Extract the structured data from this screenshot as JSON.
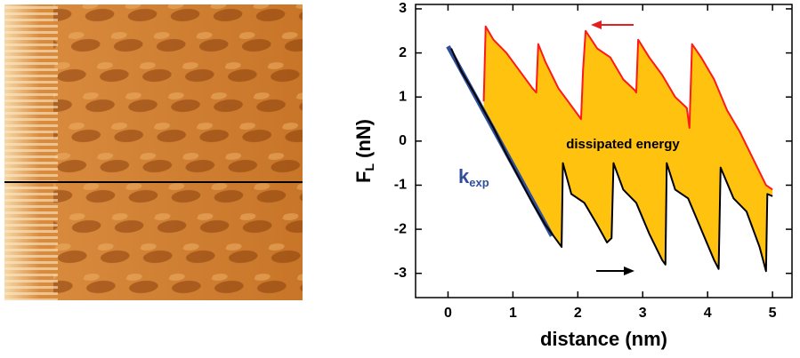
{
  "chart_data": {
    "type": "line",
    "x_label": "distance (nm)",
    "y_label": {
      "main": "F",
      "sub": "L",
      "unit": "(nN)"
    },
    "annotation": "dissipated energy",
    "fill_color": "#ffc20e",
    "xlim": [
      -0.5,
      5.3
    ],
    "xticks": [
      0,
      1,
      2,
      3,
      4,
      5
    ],
    "ylim": [
      -3.55,
      3.1
    ],
    "yticks": [
      -3,
      -2,
      -1,
      0,
      1,
      2,
      3
    ],
    "fit": {
      "label": "k",
      "label_sub": "exp",
      "color": "#2f4f9a",
      "x": [
        0,
        1.6
      ],
      "values": [
        2.15,
        -2.15
      ]
    },
    "series": [
      {
        "color": "#000000",
        "x": [
          0.05,
          0.2,
          0.4,
          0.55,
          0.7,
          0.9,
          1.1,
          1.3,
          1.5,
          1.7,
          1.75,
          1.77,
          1.9,
          2.1,
          2.3,
          2.45,
          2.52,
          2.55,
          2.7,
          2.9,
          3.1,
          3.3,
          3.35,
          3.37,
          3.5,
          3.7,
          3.9,
          4.1,
          4.17,
          4.2,
          4.4,
          4.6,
          4.8,
          4.9,
          4.92,
          5.0
        ],
        "values": [
          2.1,
          1.6,
          1.1,
          0.7,
          0.3,
          -0.3,
          -0.85,
          -1.4,
          -1.9,
          -2.3,
          -2.4,
          -0.5,
          -1.2,
          -1.4,
          -1.9,
          -2.3,
          -2.2,
          -0.5,
          -1.1,
          -1.4,
          -2.1,
          -2.7,
          -2.8,
          -0.5,
          -1.1,
          -1.3,
          -2.0,
          -2.7,
          -2.9,
          -0.6,
          -1.3,
          -1.6,
          -2.4,
          -2.95,
          -1.2,
          -1.25
        ]
      },
      {
        "color": "#ff1a1a",
        "x": [
          0.55,
          0.58,
          0.7,
          0.9,
          1.1,
          1.3,
          1.36,
          1.39,
          1.5,
          1.7,
          1.9,
          2.05,
          2.08,
          2.12,
          2.3,
          2.5,
          2.7,
          2.88,
          2.9,
          2.93,
          3.1,
          3.3,
          3.5,
          3.68,
          3.72,
          3.76,
          3.9,
          4.1,
          4.3,
          4.5,
          4.7,
          4.9,
          5.0
        ],
        "values": [
          0.9,
          2.6,
          2.3,
          2.0,
          1.6,
          1.2,
          1.1,
          2.2,
          1.8,
          1.2,
          0.8,
          0.5,
          1.6,
          2.5,
          2.1,
          1.9,
          1.4,
          1.15,
          1.1,
          2.3,
          1.9,
          1.5,
          1.0,
          0.75,
          0.3,
          2.2,
          1.9,
          1.4,
          0.7,
          0.2,
          -0.4,
          -1.0,
          -1.1
        ]
      }
    ]
  }
}
